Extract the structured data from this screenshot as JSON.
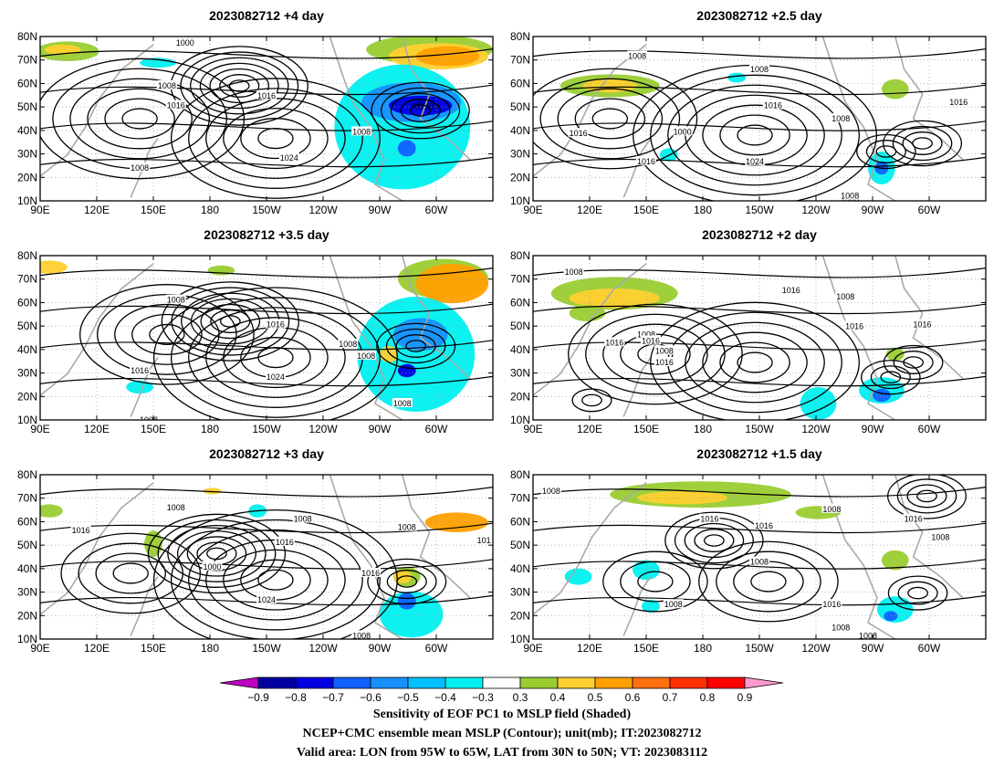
{
  "panels": [
    {
      "title": "2023082712  +4 day",
      "lat_labels": [
        "80N",
        "70N",
        "60N",
        "50N",
        "40N",
        "30N",
        "20N",
        "10N"
      ],
      "lon_labels": [
        "90E",
        "120E",
        "150E",
        "180",
        "150W",
        "120W",
        "90W",
        "60W"
      ],
      "contour_labels": [
        {
          "text": "1000"
        },
        {
          "text": "1008"
        },
        {
          "text": "1016"
        },
        {
          "text": "1016"
        },
        {
          "text": "1024"
        },
        {
          "text": "1008"
        },
        {
          "text": "1008"
        }
      ]
    },
    {
      "title": "2023082712  +2.5 day",
      "lat_labels": [
        "80N",
        "70N",
        "60N",
        "50N",
        "40N",
        "30N",
        "20N",
        "10N"
      ],
      "lon_labels": [
        "90E",
        "120E",
        "150E",
        "180",
        "150W",
        "120W",
        "90W",
        "60W"
      ],
      "contour_labels": [
        {
          "text": "1008"
        },
        {
          "text": "1008"
        },
        {
          "text": "1016"
        },
        {
          "text": "1000"
        },
        {
          "text": "1016"
        },
        {
          "text": "1016"
        },
        {
          "text": "1024"
        },
        {
          "text": "1008"
        },
        {
          "text": "1016"
        },
        {
          "text": "1008"
        },
        {
          "text": "1008"
        }
      ]
    },
    {
      "title": "2023082712  +3.5 day",
      "lat_labels": [
        "80N",
        "70N",
        "60N",
        "50N",
        "40N",
        "30N",
        "20N",
        "10N"
      ],
      "lon_labels": [
        "90E",
        "120E",
        "150E",
        "180",
        "150W",
        "120W",
        "90W",
        "60W"
      ],
      "contour_labels": [
        {
          "text": "1008"
        },
        {
          "text": "1016"
        },
        {
          "text": "1016"
        },
        {
          "text": "1024"
        },
        {
          "text": "1008"
        },
        {
          "text": "1008"
        },
        {
          "text": "1008"
        },
        {
          "text": "1008"
        }
      ]
    },
    {
      "title": "2023082712  +2 day",
      "lat_labels": [
        "80N",
        "70N",
        "60N",
        "50N",
        "40N",
        "30N",
        "20N",
        "10N"
      ],
      "lon_labels": [
        "90E",
        "120E",
        "150E",
        "180",
        "150W",
        "120W",
        "90W",
        "60W"
      ],
      "contour_labels": [
        {
          "text": "1008"
        },
        {
          "text": "1016"
        },
        {
          "text": "1008"
        },
        {
          "text": "1016"
        },
        {
          "text": "1008"
        },
        {
          "text": "1016"
        },
        {
          "text": "1016"
        },
        {
          "text": "1008"
        },
        {
          "text": "1016"
        },
        {
          "text": "1016"
        }
      ]
    },
    {
      "title": "2023082712  +3 day",
      "lat_labels": [
        "80N",
        "70N",
        "60N",
        "50N",
        "40N",
        "30N",
        "20N",
        "10N"
      ],
      "lon_labels": [
        "90E",
        "120E",
        "150E",
        "180",
        "150W",
        "120W",
        "90W",
        "60W"
      ],
      "contour_labels": [
        {
          "text": "1008"
        },
        {
          "text": "1016"
        },
        {
          "text": "1008"
        },
        {
          "text": "1016"
        },
        {
          "text": "1000"
        },
        {
          "text": "1024"
        },
        {
          "text": "1016"
        },
        {
          "text": "1008"
        },
        {
          "text": "101"
        },
        {
          "text": "1008"
        }
      ]
    },
    {
      "title": "2023082712  +1.5 day",
      "lat_labels": [
        "80N",
        "70N",
        "60N",
        "50N",
        "40N",
        "30N",
        "20N",
        "10N"
      ],
      "lon_labels": [
        "90E",
        "120E",
        "150E",
        "180",
        "150W",
        "120W",
        "90W",
        "60W"
      ],
      "contour_labels": [
        {
          "text": "1008"
        },
        {
          "text": "1016"
        },
        {
          "text": "1016"
        },
        {
          "text": "1008"
        },
        {
          "text": "1008"
        },
        {
          "text": "1016"
        },
        {
          "text": "1008"
        },
        {
          "text": "1016"
        },
        {
          "text": "1008"
        },
        {
          "text": "1008"
        },
        {
          "text": "1008"
        }
      ]
    }
  ],
  "colorbar": {
    "ticks": [
      "-0.9",
      "-0.8",
      "-0.7",
      "-0.6",
      "-0.5",
      "-0.4",
      "-0.3",
      "0.3",
      "0.4",
      "0.5",
      "0.6",
      "0.7",
      "0.8",
      "0.9"
    ],
    "colors": [
      "#c000c0",
      "#0000a0",
      "#0000e0",
      "#1060ff",
      "#1890ff",
      "#00c0ff",
      "#00f0f0",
      "#ffffff",
      "#9acd32",
      "#ffd030",
      "#ffa000",
      "#ff7010",
      "#ff3000",
      "#ff0000",
      "#ff9ad0"
    ]
  },
  "captions": [
    "Sensitivity of EOF PC1 to MSLP field (Shaded)",
    "NCEP+CMC ensemble mean MSLP (Contour); unit(mb); IT:2023082712",
    "Valid area: LON from 95W to 65W, LAT from 30N to 50N; VT: 2023083112"
  ],
  "colors": {
    "contour": "#000000",
    "coast": "#a9a9a9",
    "grid": "#9a9a9a"
  }
}
